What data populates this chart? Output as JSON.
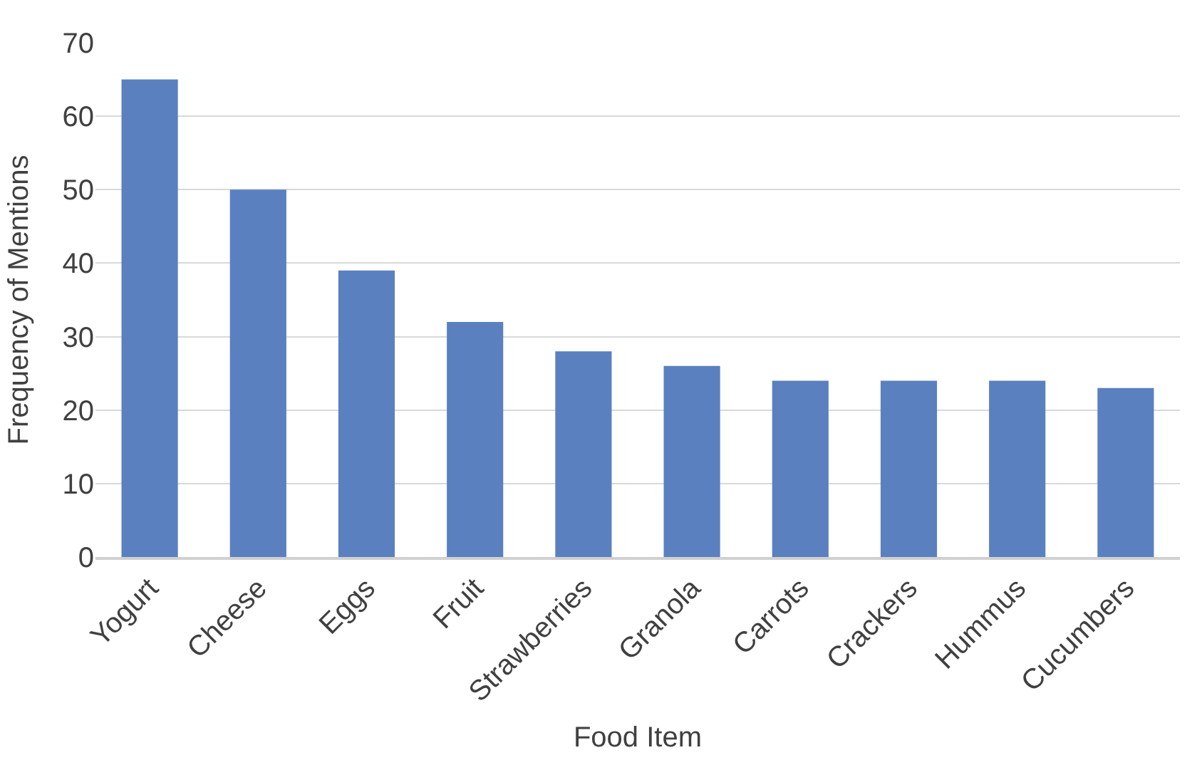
{
  "chart_data": {
    "type": "bar",
    "xlabel": "Food Item",
    "ylabel": "Frequency of Mentions",
    "categories": [
      "Yogurt",
      "Cheese",
      "Eggs",
      "Fruit",
      "Strawberries",
      "Granola",
      "Carrots",
      "Crackers",
      "Hummus",
      "Cucumbers"
    ],
    "values": [
      65,
      50,
      39,
      32,
      28,
      26,
      24,
      24,
      24,
      23
    ],
    "color": "#5a80bf",
    "ylim": [
      0,
      70
    ],
    "yticks": [
      0,
      10,
      20,
      30,
      40,
      50,
      60,
      70
    ],
    "grid": "y"
  }
}
